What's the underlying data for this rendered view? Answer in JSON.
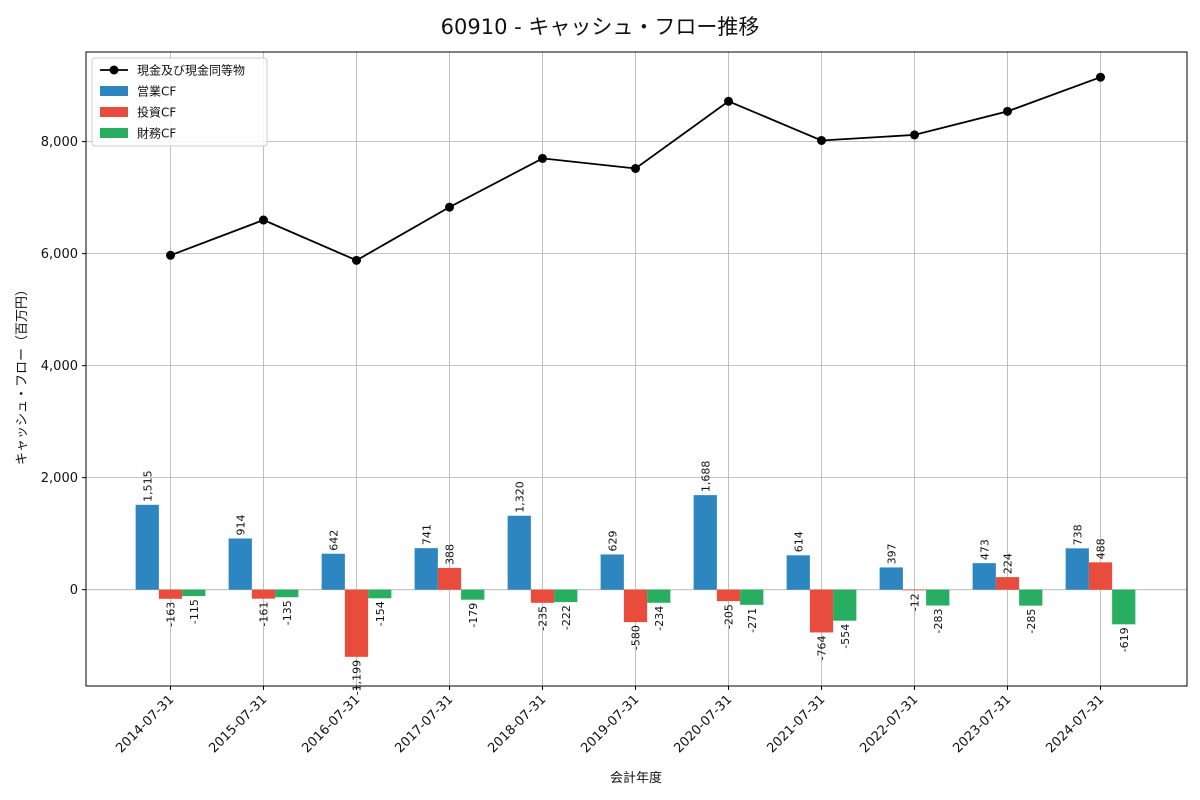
{
  "chart_data": {
    "type": "bar",
    "title": "60910 - キャッシュ・フロー推移",
    "xlabel": "会計年度",
    "ylabel": "キャッシュ・フロー（百万円）",
    "categories": [
      "2014-07-31",
      "2015-07-31",
      "2016-07-31",
      "2017-07-31",
      "2018-07-31",
      "2019-07-31",
      "2020-07-31",
      "2021-07-31",
      "2022-07-31",
      "2023-07-31",
      "2024-07-31"
    ],
    "ylim": [
      -1720,
      9600
    ],
    "yticks": [
      0,
      2000,
      4000,
      6000,
      8000
    ],
    "ytick_labels": [
      "0",
      "2,000",
      "4,000",
      "6,000",
      "8,000"
    ],
    "grid": true,
    "legend_position": "top-left",
    "series": [
      {
        "name": "営業CF",
        "kind": "bar",
        "color": "#2e86c1",
        "values": [
          1515,
          914,
          642,
          741,
          1320,
          629,
          1688,
          614,
          397,
          473,
          738
        ],
        "labels": [
          "1,515",
          "914",
          "642",
          "741",
          "1,320",
          "629",
          "1,688",
          "614",
          "397",
          "473",
          "738"
        ]
      },
      {
        "name": "投資CF",
        "kind": "bar",
        "color": "#e74c3c",
        "values": [
          -163,
          -161,
          -1199,
          388,
          -235,
          -580,
          -205,
          -764,
          -12,
          224,
          488
        ],
        "labels": [
          "-163",
          "-161",
          "-1,199",
          "388",
          "-235",
          "-580",
          "-205",
          "-764",
          "-12",
          "224",
          "488"
        ]
      },
      {
        "name": "財務CF",
        "kind": "bar",
        "color": "#27ae60",
        "values": [
          -115,
          -135,
          -154,
          -179,
          -222,
          -234,
          -271,
          -554,
          -283,
          -285,
          -619
        ],
        "labels": [
          "-115",
          "-135",
          "-154",
          "-179",
          "-222",
          "-234",
          "-271",
          "-554",
          "-283",
          "-285",
          "-619"
        ]
      },
      {
        "name": "現金及び現金同等物",
        "kind": "line",
        "color": "#000000",
        "values": [
          5970,
          6600,
          5880,
          6830,
          7700,
          7520,
          8720,
          8020,
          8120,
          8540,
          9150
        ]
      }
    ]
  }
}
